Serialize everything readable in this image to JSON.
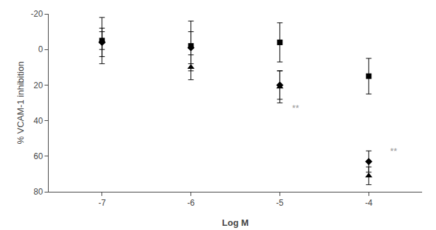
{
  "chart_data": {
    "type": "scatter",
    "x": [
      -7,
      -6,
      -5,
      -4
    ],
    "xlabel": "Log M",
    "ylabel": "% VCAM-1 inhibition",
    "xlim": [
      -7.6,
      -3.4
    ],
    "xticks": [
      -7,
      -6,
      -5,
      -4
    ],
    "ylim": [
      80,
      -20
    ],
    "yticks": [
      -20,
      0,
      20,
      40,
      60,
      80
    ],
    "grid": false,
    "series": [
      {
        "marker": "square",
        "color": "#000000",
        "values": [
          -5,
          -2,
          -4,
          15
        ],
        "error": [
          13,
          14,
          11,
          10
        ]
      },
      {
        "marker": "diamond",
        "color": "#000000",
        "values": [
          -4,
          -1,
          20,
          63
        ],
        "error": [
          8,
          9,
          8,
          6
        ]
      },
      {
        "marker": "triangle",
        "color": "#000000",
        "values": [
          -5,
          10,
          21,
          71
        ],
        "error": [
          5,
          7,
          9,
          5
        ]
      }
    ],
    "annotations": [
      {
        "text": "**",
        "x": -4.82,
        "y": 33,
        "color": "#999999"
      },
      {
        "text": "**",
        "x": -3.72,
        "y": 57,
        "color": "#999999"
      }
    ]
  }
}
